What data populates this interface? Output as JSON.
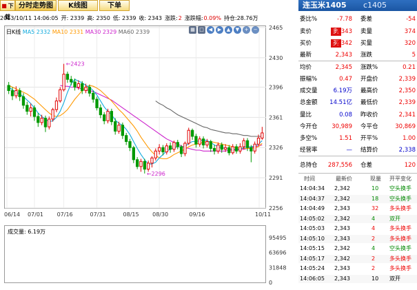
{
  "tabs": {
    "realtime": "分时走势图",
    "kline": "K线图",
    "order": "下单",
    "left_fragment": "下载"
  },
  "info": {
    "datetime": "2013/10/11 14:06:05",
    "open": "开: 2339",
    "high": "高: 2350",
    "low": "低: 2339",
    "close": "收: 2343",
    "change_label": "涨跌:",
    "change": "2",
    "pct_label": "涨跌幅:",
    "pct": "0.09%",
    "oi": "持仓:28.76万"
  },
  "legend": {
    "period": "日K线",
    "ma5": "MA5 2332",
    "ma10": "MA10 2331",
    "ma30": "MA30 2329",
    "ma60": "MA60 2339"
  },
  "colors": {
    "ma5": "#11aadd",
    "ma10": "#ff9900",
    "ma30": "#cc22cc",
    "ma60": "#666666",
    "up": "#e00000",
    "down": "#009900",
    "annot": "#cc22cc"
  },
  "chart_data": {
    "type": "candlestick",
    "x_ticks": [
      "06/14",
      "07/01",
      "07/16",
      "07/31",
      "08/15",
      "08/30",
      "09/16",
      "10/11"
    ],
    "y_ticks": [
      2465,
      2430,
      2396,
      2361,
      2326,
      2291,
      2256
    ],
    "ylim": [
      2256,
      2465
    ],
    "annotations": [
      {
        "label": "2423",
        "type": "high"
      },
      {
        "label": "2296",
        "type": "low"
      }
    ],
    "candles": [
      [
        2398,
        2392,
        2402,
        2388
      ],
      [
        2392,
        2386,
        2396,
        2381
      ],
      [
        2386,
        2392,
        2397,
        2383
      ],
      [
        2392,
        2385,
        2395,
        2380
      ],
      [
        2385,
        2375,
        2389,
        2371
      ],
      [
        2375,
        2368,
        2379,
        2364
      ],
      [
        2368,
        2372,
        2377,
        2362
      ],
      [
        2372,
        2362,
        2375,
        2357
      ],
      [
        2362,
        2355,
        2366,
        2350
      ],
      [
        2355,
        2360,
        2364,
        2352
      ],
      [
        2360,
        2350,
        2363,
        2344
      ],
      [
        2350,
        2359,
        2362,
        2347
      ],
      [
        2359,
        2370,
        2372,
        2356
      ],
      [
        2370,
        2380,
        2384,
        2367
      ],
      [
        2380,
        2393,
        2396,
        2378
      ],
      [
        2393,
        2411,
        2423,
        2391
      ],
      [
        2411,
        2405,
        2414,
        2401
      ],
      [
        2405,
        2402,
        2409,
        2398
      ],
      [
        2402,
        2396,
        2406,
        2392
      ],
      [
        2396,
        2400,
        2404,
        2393
      ],
      [
        2400,
        2392,
        2403,
        2388
      ],
      [
        2392,
        2396,
        2400,
        2389
      ],
      [
        2396,
        2389,
        2399,
        2385
      ],
      [
        2389,
        2382,
        2392,
        2378
      ],
      [
        2382,
        2372,
        2385,
        2369
      ],
      [
        2372,
        2364,
        2376,
        2360
      ],
      [
        2364,
        2357,
        2367,
        2353
      ],
      [
        2357,
        2368,
        2371,
        2354
      ],
      [
        2368,
        2356,
        2371,
        2352
      ],
      [
        2356,
        2345,
        2360,
        2341
      ],
      [
        2345,
        2352,
        2356,
        2342
      ],
      [
        2352,
        2340,
        2355,
        2336
      ],
      [
        2340,
        2333,
        2343,
        2329
      ],
      [
        2333,
        2326,
        2336,
        2322
      ],
      [
        2326,
        2312,
        2328,
        2308
      ],
      [
        2312,
        2304,
        2315,
        2301
      ],
      [
        2304,
        2310,
        2313,
        2298
      ],
      [
        2310,
        2301,
        2313,
        2296
      ],
      [
        2301,
        2308,
        2311,
        2298
      ],
      [
        2308,
        2314,
        2316,
        2303
      ],
      [
        2314,
        2322,
        2325,
        2311
      ],
      [
        2322,
        2326,
        2330,
        2318
      ],
      [
        2326,
        2321,
        2329,
        2317
      ],
      [
        2321,
        2328,
        2331,
        2318
      ],
      [
        2328,
        2324,
        2332,
        2320
      ],
      [
        2324,
        2332,
        2334,
        2321
      ],
      [
        2332,
        2327,
        2335,
        2324
      ],
      [
        2327,
        2319,
        2329,
        2315
      ],
      [
        2319,
        2331,
        2333,
        2316
      ],
      [
        2331,
        2346,
        2349,
        2329
      ],
      [
        2346,
        2339,
        2348,
        2335
      ],
      [
        2339,
        2330,
        2342,
        2326
      ],
      [
        2330,
        2336,
        2339,
        2327
      ],
      [
        2336,
        2329,
        2339,
        2325
      ],
      [
        2329,
        2333,
        2336,
        2326
      ],
      [
        2333,
        2325,
        2335,
        2321
      ],
      [
        2325,
        2322,
        2329,
        2318
      ],
      [
        2322,
        2329,
        2332,
        2319
      ],
      [
        2329,
        2324,
        2332,
        2320
      ],
      [
        2324,
        2326,
        2330,
        2321
      ],
      [
        2326,
        2320,
        2329,
        2317
      ],
      [
        2320,
        2327,
        2330,
        2318
      ],
      [
        2327,
        2322,
        2330,
        2319
      ],
      [
        2322,
        2327,
        2331,
        2319
      ],
      [
        2327,
        2334,
        2337,
        2324
      ],
      [
        2334,
        2326,
        2337,
        2322
      ],
      [
        2326,
        2322,
        2329,
        2309
      ],
      [
        2322,
        2330,
        2333,
        2319
      ],
      [
        2330,
        2337,
        2341,
        2328
      ],
      [
        2337,
        2343,
        2350,
        2335
      ]
    ],
    "ma5": [
      2396,
      2393,
      2390,
      2388,
      2385,
      2381,
      2377,
      2372,
      2366,
      2362,
      2359,
      2356,
      2357,
      2361,
      2368,
      2378,
      2390,
      2400,
      2405,
      2403,
      2401,
      2398,
      2396,
      2392,
      2387,
      2380,
      2373,
      2368,
      2364,
      2358,
      2354,
      2352,
      2347,
      2341,
      2333,
      2325,
      2318,
      2312,
      2307,
      2307,
      2309,
      2314,
      2318,
      2322,
      2324,
      2326,
      2327,
      2327,
      2327,
      2331,
      2333,
      2333,
      2334,
      2335,
      2334,
      2332,
      2329,
      2327,
      2326,
      2325,
      2324,
      2324,
      2324,
      2324,
      2326,
      2327,
      2327,
      2328,
      2330,
      2334
    ],
    "ma10": [
      2398,
      2396,
      2394,
      2392,
      2390,
      2388,
      2385,
      2382,
      2378,
      2374,
      2370,
      2366,
      2363,
      2362,
      2363,
      2366,
      2370,
      2376,
      2382,
      2387,
      2392,
      2396,
      2398,
      2397,
      2395,
      2392,
      2388,
      2384,
      2380,
      2375,
      2370,
      2366,
      2361,
      2356,
      2351,
      2345,
      2338,
      2332,
      2326,
      2321,
      2317,
      2314,
      2313,
      2313,
      2315,
      2318,
      2320,
      2322,
      2324,
      2327,
      2329,
      2330,
      2331,
      2332,
      2333,
      2333,
      2332,
      2331,
      2330,
      2329,
      2328,
      2327,
      2326,
      2325,
      2325,
      2325,
      2325,
      2326,
      2327,
      2331
    ],
    "ma30": [
      null,
      null,
      null,
      null,
      null,
      null,
      null,
      null,
      null,
      null,
      null,
      null,
      null,
      null,
      2398,
      2397,
      2397,
      2396,
      2396,
      2395,
      2394,
      2393,
      2392,
      2391,
      2389,
      2387,
      2385,
      2383,
      2381,
      2378,
      2375,
      2372,
      2369,
      2366,
      2363,
      2360,
      2357,
      2354,
      2351,
      2348,
      2345,
      2342,
      2339,
      2336,
      2334,
      2332,
      2330,
      2328,
      2326,
      2325,
      2324,
      2323,
      2323,
      2322,
      2322,
      2322,
      2322,
      2322,
      2322,
      2322,
      2323,
      2323,
      2323,
      2324,
      2324,
      2325,
      2326,
      2327,
      2328,
      2329
    ],
    "ma60": [
      null,
      null,
      null,
      null,
      null,
      null,
      null,
      null,
      null,
      null,
      null,
      null,
      null,
      null,
      null,
      null,
      null,
      null,
      null,
      null,
      null,
      null,
      null,
      null,
      null,
      null,
      null,
      null,
      null,
      null,
      null,
      null,
      null,
      null,
      null,
      null,
      null,
      null,
      null,
      null,
      2380,
      2377,
      2375,
      2372,
      2370,
      2367,
      2364,
      2362,
      2360,
      2358,
      2356,
      2354,
      2352,
      2350,
      2349,
      2347,
      2346,
      2345,
      2344,
      2343,
      2343,
      2342,
      2342,
      2341,
      2340,
      2340,
      2339,
      2339,
      2339,
      2339
    ],
    "volume_title": "成交量: 6.19万",
    "volume_ticks": [
      95495,
      63696,
      31848,
      0
    ],
    "volume": [
      30000,
      22000,
      26000,
      25000,
      28000,
      24000,
      27000,
      21000,
      24000,
      26000,
      20000,
      29000,
      35000,
      37000,
      45000,
      69000,
      52000,
      42000,
      38000,
      33000,
      36000,
      30000,
      32000,
      35000,
      38000,
      44000,
      47000,
      52000,
      60000,
      69000,
      73000,
      66000,
      71000,
      62000,
      65000,
      71000,
      58000,
      56000,
      54000,
      72000,
      64000,
      69000,
      61000,
      66000,
      60000,
      63000,
      70000,
      68000,
      64000,
      70000,
      67000,
      64000,
      62000,
      63000,
      65000,
      66000,
      68000,
      70000,
      67000,
      69000,
      72000,
      66000,
      70000,
      71000,
      69000,
      73000,
      92000,
      68000,
      87000,
      61900
    ]
  },
  "quote": {
    "title": "连玉米1405",
    "code": "c1405",
    "rows": [
      {
        "l1": "委比%",
        "v1": "-7.78",
        "c1": "red",
        "l2": "委差",
        "v2": "-54",
        "c2": "red"
      },
      {
        "l1": "卖价",
        "v1": "2,343",
        "c1": "red",
        "badge": "卖",
        "l2": "卖量",
        "v2": "374",
        "c2": "red"
      },
      {
        "l1": "买价",
        "v1": "2,342",
        "c1": "red",
        "badge": "买",
        "l2": "买量",
        "v2": "320",
        "c2": "red"
      },
      {
        "l1": "最新",
        "v1": "2,343",
        "c1": "red",
        "l2": "涨跌",
        "v2": "5",
        "c2": "red"
      },
      {
        "l1": "均价",
        "v1": "2,345",
        "c1": "red",
        "l2": "涨跌%",
        "v2": "0.21",
        "c2": "red"
      },
      {
        "l1": "振幅%",
        "v1": "0.47",
        "c1": "red",
        "l2": "开盘价",
        "v2": "2,339",
        "c2": "red"
      },
      {
        "l1": "成交量",
        "v1": "6.19万",
        "c1": "blue",
        "l2": "最高价",
        "v2": "2,350",
        "c2": "red"
      },
      {
        "l1": "总金额",
        "v1": "14.51亿",
        "c1": "blue",
        "l2": "最低价",
        "v2": "2,339",
        "c2": "red"
      },
      {
        "l1": "量比",
        "v1": "0.08",
        "c1": "blue",
        "l2": "昨收价",
        "v2": "2,341",
        "c2": "red"
      },
      {
        "l1": "今开仓",
        "v1": "30,989",
        "c1": "red",
        "l2": "今平仓",
        "v2": "30,869",
        "c2": "red"
      },
      {
        "l1": "多空%",
        "v1": "1.51",
        "c1": "red",
        "l2": "开平%",
        "v2": "1.00",
        "c2": "red"
      },
      {
        "l1": "经营率",
        "v1": "—",
        "c1": "blue",
        "l2": "结算价",
        "v2": "2,338",
        "c2": "blue"
      },
      {
        "l1": "总持仓",
        "v1": "287,556",
        "c1": "red",
        "l2": "仓差",
        "v2": "120",
        "c2": "red"
      }
    ],
    "trade_headers": [
      "时间",
      "最新价",
      "现量",
      "开平变化"
    ],
    "trades": [
      {
        "time": "14:04:34",
        "price": "2,342",
        "qty": "10",
        "type": "空头换手",
        "color": "green"
      },
      {
        "time": "14:04:37",
        "price": "2,342",
        "qty": "18",
        "type": "空头换手",
        "color": "green"
      },
      {
        "time": "14:04:49",
        "price": "2,343",
        "qty": "32",
        "type": "多头换手",
        "color": "red"
      },
      {
        "time": "14:05:02",
        "price": "2,342",
        "qty": "4",
        "type": "双开",
        "color": "green"
      },
      {
        "time": "14:05:03",
        "price": "2,343",
        "qty": "4",
        "type": "多头换手",
        "color": "red"
      },
      {
        "time": "14:05:10",
        "price": "2,343",
        "qty": "2",
        "type": "多头换手",
        "color": "red"
      },
      {
        "time": "14:05:15",
        "price": "2,342",
        "qty": "4",
        "type": "空头换手",
        "color": "green"
      },
      {
        "time": "14:05:17",
        "price": "2,342",
        "qty": "2",
        "type": "多头换手",
        "color": "red"
      },
      {
        "time": "14:05:24",
        "price": "2,343",
        "qty": "2",
        "type": "多头换手",
        "color": "red"
      },
      {
        "time": "14:06:05",
        "price": "2,343",
        "qty": "10",
        "type": "双开",
        "color": "black"
      }
    ]
  }
}
